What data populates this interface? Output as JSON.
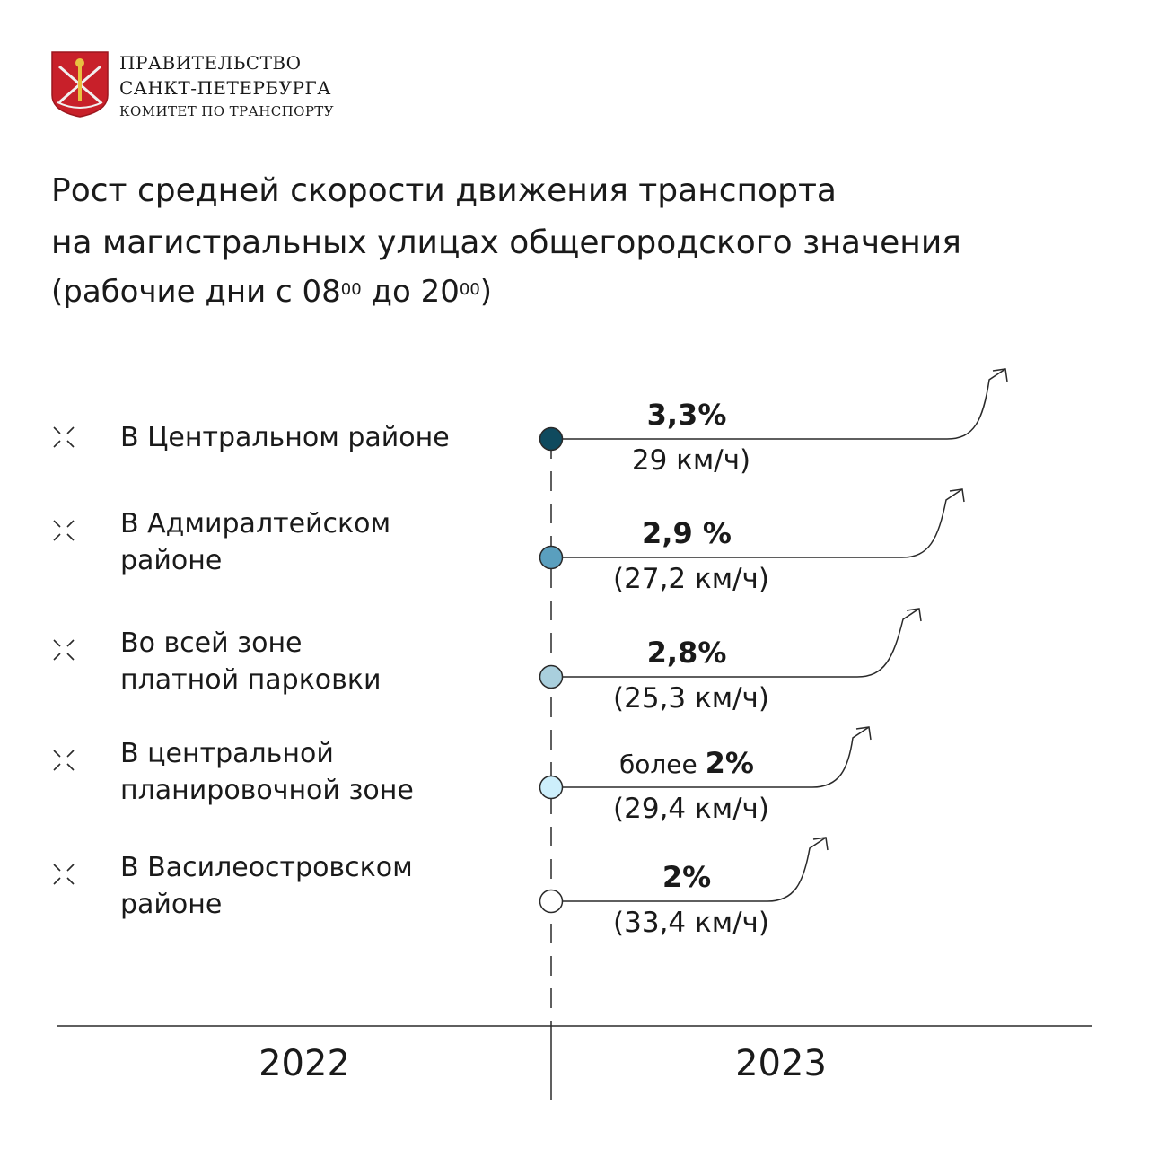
{
  "header": {
    "org_line1": "ПРАВИТЕЛЬСТВО",
    "org_line2": "САНКТ-ПЕТЕРБУРГА",
    "org_line3": "КОМИТЕТ ПО ТРАНСПОРТУ"
  },
  "title_line1": "Рост средней скорости движения транспорта",
  "title_line2": "на магистральных улицах общегородского значения",
  "subtitle": {
    "pre": "(рабочие дни с 08",
    "sup1": "00",
    "mid": " до 20",
    "sup2": "00",
    "post": ")"
  },
  "colors": {
    "logo_red": "#c8202a",
    "marker_dark": "#0f4a5e",
    "line": "#2a2a2a"
  },
  "chart_data": {
    "type": "table",
    "x_categories": [
      "2022",
      "2023"
    ],
    "rows": [
      {
        "label_line1": "В Центральном районе",
        "label_line2": "",
        "prefix": "",
        "growth_label": "3,3%",
        "growth_pct": 3.3,
        "speed_label": "29 км/ч)",
        "speed_kmh": 29,
        "marker_color": "#0f4a5e"
      },
      {
        "label_line1": "В Адмиралтейском",
        "label_line2": "районе",
        "prefix": "",
        "growth_label": "2,9 %",
        "growth_pct": 2.9,
        "speed_label": "(27,2 км/ч)",
        "speed_kmh": 27.2,
        "marker_color": "#5a9fbe"
      },
      {
        "label_line1": "Во всей зоне",
        "label_line2": "платной парковки",
        "prefix": "",
        "growth_label": "2,8%",
        "growth_pct": 2.8,
        "speed_label": "(25,3 км/ч)",
        "speed_kmh": 25.3,
        "marker_color": "#a9cfdd"
      },
      {
        "label_line1": "В центральной",
        "label_line2": "планировочной зоне",
        "prefix": "более ",
        "growth_label": "2%",
        "growth_pct": 2,
        "speed_label": "(29,4 км/ч)",
        "speed_kmh": 29.4,
        "marker_color": "#cdeffb"
      },
      {
        "label_line1": "В Василеостровском",
        "label_line2": "районе",
        "prefix": "",
        "growth_label": "2%",
        "growth_pct": 2,
        "speed_label": "(33,4 км/ч)",
        "speed_kmh": 33.4,
        "marker_color": "#ffffff"
      }
    ]
  }
}
